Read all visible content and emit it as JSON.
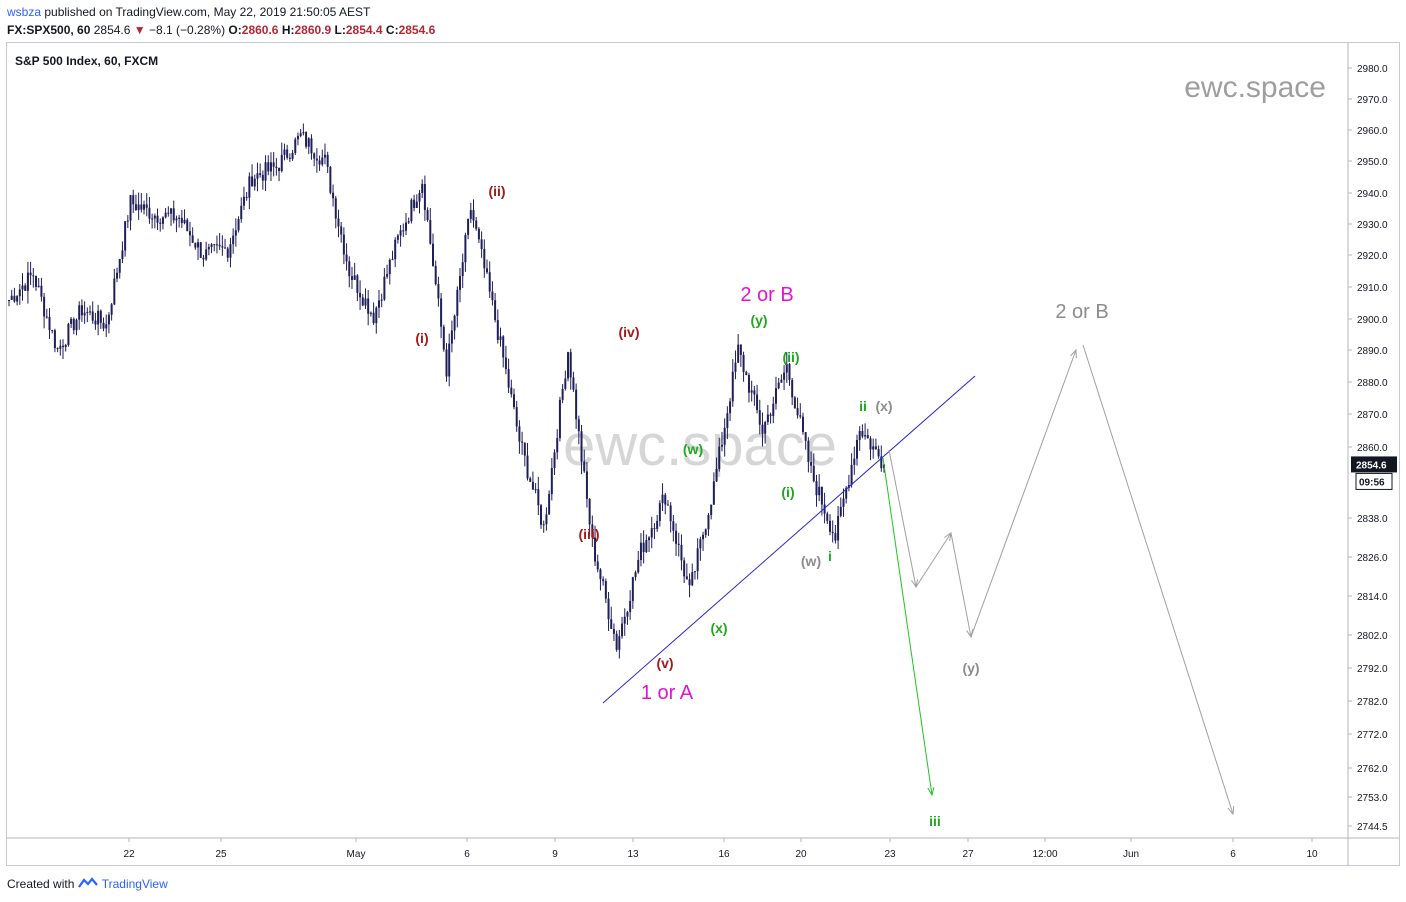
{
  "header": {
    "user": "wsbza",
    "published": "published on TradingView.com, May 22, 2019 21:50:05 AEST",
    "symbol": "FX:SPX500, 60",
    "last": "2854.6",
    "change": "−8.1 (−0.28%)",
    "o_label": "O:",
    "o_val": "2860.6",
    "h_label": "H:",
    "h_val": "2860.9",
    "l_label": "L:",
    "l_val": "2854.4",
    "c_label": "C:",
    "c_val": "2854.6"
  },
  "footer": {
    "created_with": "Created with",
    "brand": "TradingView"
  },
  "colors": {
    "candle": "#1e1e5a",
    "wave_red": "#a31b1b",
    "wave_green": "#1fa81f",
    "wave_gray": "#8c8c8c",
    "magenta": "#e612d2",
    "trendline": "#2424d6",
    "projection_green": "#22c322",
    "projection_gray": "#a0a0a0",
    "price_tag": "#131722"
  },
  "chart_data": {
    "type": "candlestick",
    "title": "S&P 500 Index, 60, FXCM",
    "watermark": "ewc.space",
    "x_tick_labels": [
      "22",
      "25",
      "May",
      "6",
      "9",
      "13",
      "16",
      "20",
      "23",
      "27",
      "12:00",
      "Jun",
      "6",
      "10"
    ],
    "y_tick_labels": [
      2980.0,
      2970.0,
      2960.0,
      2950.0,
      2940.0,
      2930.0,
      2920.0,
      2910.0,
      2900.0,
      2890.0,
      2880.0,
      2870.0,
      2860.0,
      2838.0,
      2826.0,
      2814.0,
      2802.0,
      2792.0,
      2782.0,
      2772.0,
      2762.0,
      2753.0,
      2744.5
    ],
    "current_price": "2854.6",
    "countdown": "09:56",
    "price_path": [
      [
        "Apr 18",
        2906
      ],
      [
        "Apr 19",
        2914
      ],
      [
        "Apr 21",
        2890
      ],
      [
        "Apr 22",
        2903
      ],
      [
        "Apr 23",
        2898
      ],
      [
        "Apr 24",
        2937
      ],
      [
        "Apr 25",
        2933
      ],
      [
        "Apr 26",
        2932
      ],
      [
        "Apr 27",
        2920
      ],
      [
        "Apr 28",
        2922
      ],
      [
        "Apr 29",
        2945
      ],
      [
        "Apr 30",
        2948
      ],
      [
        "May 1",
        2958
      ],
      [
        "May 2",
        2950
      ],
      [
        "May 3",
        2915
      ],
      [
        "May 4",
        2901
      ],
      [
        "May 5",
        2925
      ],
      [
        "May 6",
        2944
      ],
      [
        "May 6b",
        2884
      ],
      [
        "May 7",
        2935
      ],
      [
        "May 8",
        2900
      ],
      [
        "May 9",
        2862
      ],
      [
        "May 10",
        2835
      ],
      [
        "May 12",
        2890
      ],
      [
        "May 13",
        2830
      ],
      [
        "May 14",
        2799
      ],
      [
        "May 15",
        2828
      ],
      [
        "May 16",
        2845
      ],
      [
        "May 16b",
        2815
      ],
      [
        "May 17",
        2848
      ],
      [
        "May 18",
        2890
      ],
      [
        "May 19",
        2865
      ],
      [
        "May 19b",
        2885
      ],
      [
        "May 20",
        2852
      ],
      [
        "May 21",
        2832
      ],
      [
        "May 22",
        2866
      ],
      [
        "May 22b",
        2854.6
      ]
    ],
    "wave_labels": {
      "red": [
        "(i)",
        "(ii)",
        "(iii)",
        "(iv)",
        "(v)"
      ],
      "green": [
        "(w)",
        "(x)",
        "(y)",
        "(i)",
        "(ii)",
        "i",
        "ii",
        "iii"
      ],
      "gray": [
        "(w)",
        "(x)",
        "(y)",
        "2 or B"
      ],
      "magenta": [
        "1 or A",
        "2 or B"
      ]
    },
    "trendline": [
      [
        2796,
        "May 13"
      ],
      [
        2882,
        "May 28"
      ]
    ],
    "projections": {
      "green": [
        [
          2855,
          "May 22"
        ],
        [
          2755,
          "May 25"
        ]
      ],
      "gray_near": [
        2858,
        2815,
        2832,
        2800
      ],
      "gray_far": [
        2800,
        2890,
        2747
      ]
    },
    "grid": false
  }
}
